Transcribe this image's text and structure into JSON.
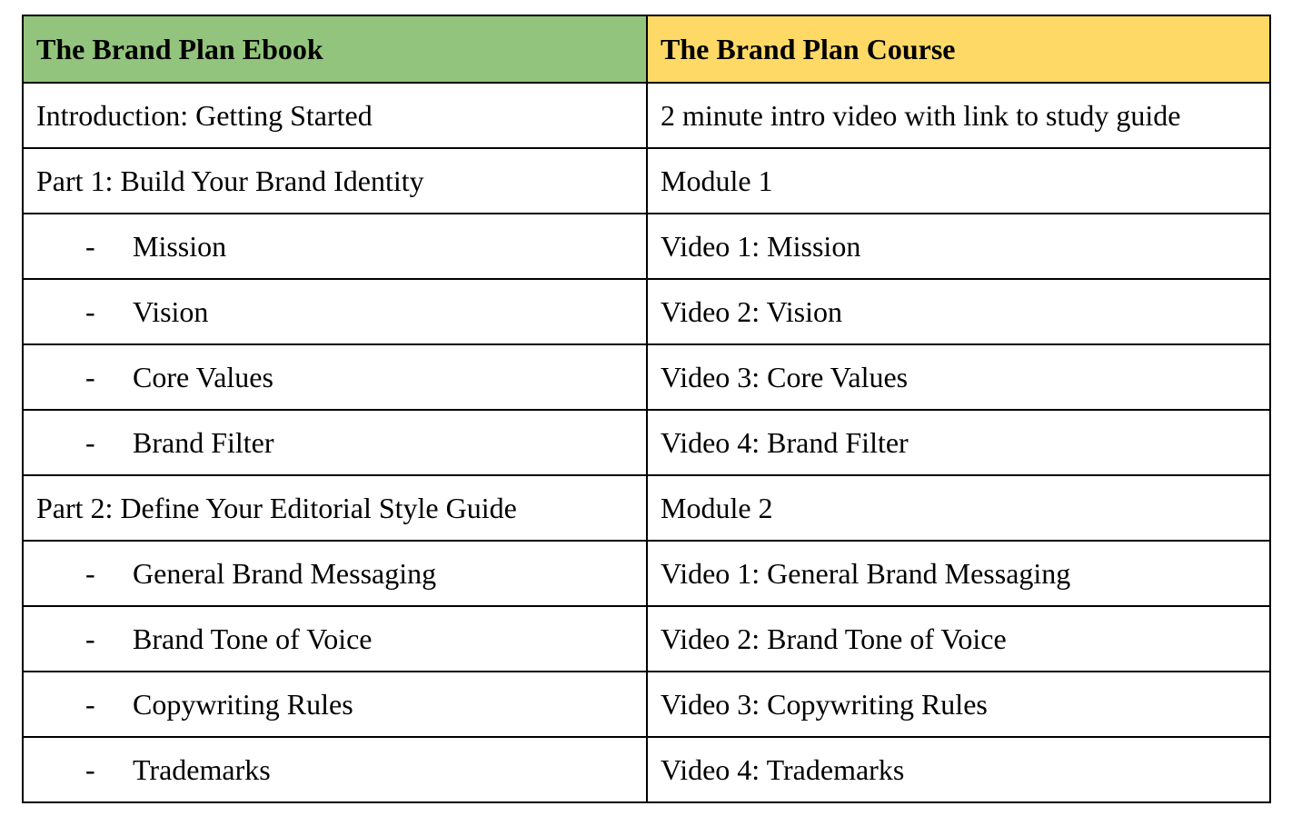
{
  "table": {
    "headers": [
      {
        "label": "The Brand Plan Ebook",
        "bg": "#93c47d"
      },
      {
        "label": "The Brand Plan Course",
        "bg": "#ffd966"
      }
    ],
    "bullet": "-",
    "rows": [
      {
        "ebook": "Introduction: Getting Started",
        "course": "2 minute intro video with link to study guide",
        "sub": false
      },
      {
        "ebook": "Part 1: Build Your Brand Identity",
        "course": "Module 1",
        "sub": false
      },
      {
        "ebook": "Mission",
        "course": "Video 1: Mission",
        "sub": true
      },
      {
        "ebook": "Vision",
        "course": "Video 2: Vision",
        "sub": true
      },
      {
        "ebook": "Core Values",
        "course": "Video 3: Core Values",
        "sub": true
      },
      {
        "ebook": "Brand Filter",
        "course": "Video 4: Brand Filter",
        "sub": true
      },
      {
        "ebook": "Part 2: Define Your Editorial Style Guide",
        "course": "Module 2",
        "sub": false
      },
      {
        "ebook": "General Brand Messaging",
        "course": "Video 1: General Brand Messaging",
        "sub": true
      },
      {
        "ebook": "Brand Tone of Voice",
        "course": "Video 2: Brand Tone of Voice",
        "sub": true
      },
      {
        "ebook": "Copywriting Rules",
        "course": "Video 3: Copywriting Rules",
        "sub": true
      },
      {
        "ebook": "Trademarks",
        "course": "Video 4: Trademarks",
        "sub": true
      }
    ]
  }
}
